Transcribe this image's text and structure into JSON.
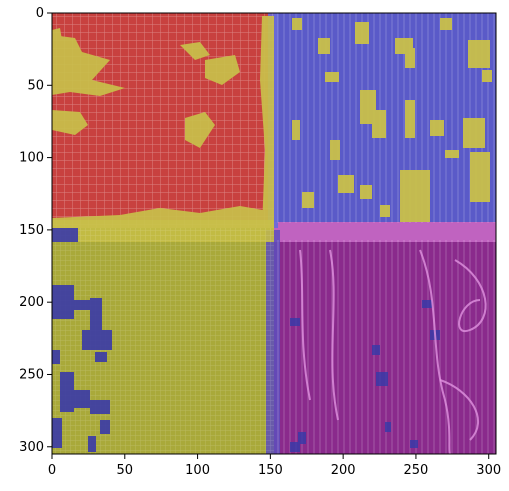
{
  "figure": {
    "x_ticks": [
      {
        "value": 0,
        "label": "0"
      },
      {
        "value": 50,
        "label": "50"
      },
      {
        "value": 100,
        "label": "100"
      },
      {
        "value": 150,
        "label": "150"
      },
      {
        "value": 200,
        "label": "200"
      },
      {
        "value": 250,
        "label": "250"
      },
      {
        "value": 300,
        "label": "300"
      }
    ],
    "y_ticks": [
      {
        "value": 0,
        "label": "0"
      },
      {
        "value": 50,
        "label": "50"
      },
      {
        "value": 100,
        "label": "100"
      },
      {
        "value": 150,
        "label": "150"
      },
      {
        "value": 200,
        "label": "200"
      },
      {
        "value": 250,
        "label": "250"
      },
      {
        "value": 300,
        "label": "300"
      }
    ],
    "image_extent": {
      "x": [
        0,
        305
      ],
      "y": [
        0,
        305
      ]
    },
    "overlay_colors": {
      "red": "#c8413f",
      "blue": "#5a5ac8",
      "yellow": "#b9b63a",
      "magenta": "#9a2d9a"
    }
  }
}
